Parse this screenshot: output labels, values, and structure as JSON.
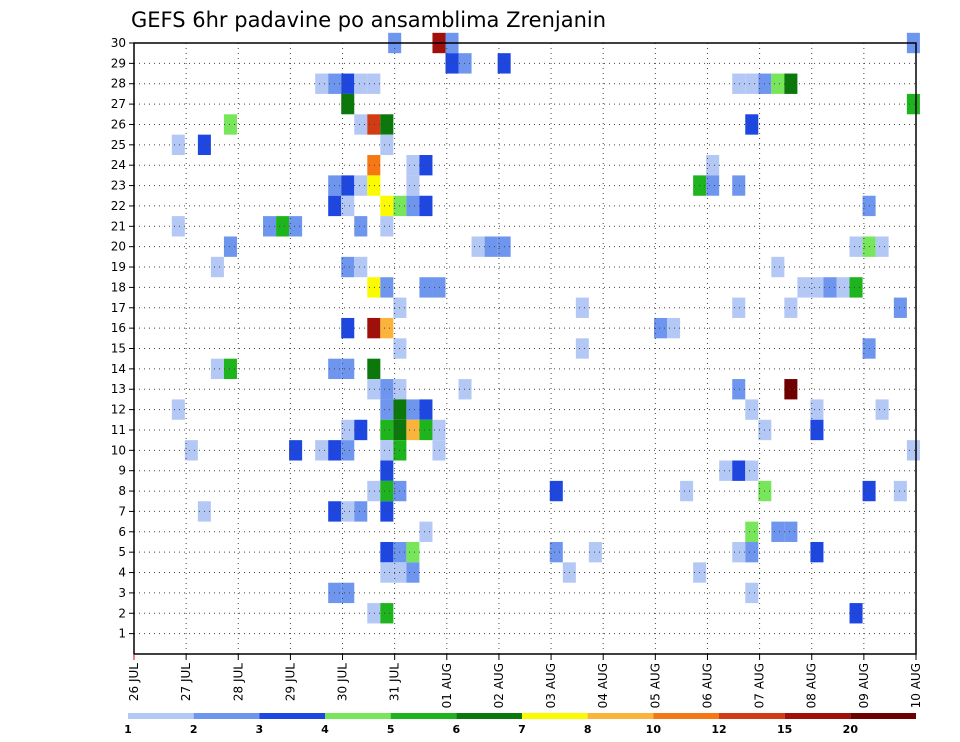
{
  "chart_data": {
    "type": "heatmap",
    "title": "GEFS 6hr padavine po ansamblima Zrenjanin",
    "x_ticks": [
      "26 JUL",
      "27 JUL",
      "28 JUL",
      "29 JUL",
      "30 JUL",
      "31 JUL",
      "01 AUG",
      "02 AUG",
      "03 AUG",
      "04 AUG",
      "05 AUG",
      "06 AUG",
      "07 AUG",
      "08 AUG",
      "09 AUG",
      "10 AUG"
    ],
    "y_ticks": [
      1,
      2,
      3,
      4,
      5,
      6,
      7,
      8,
      9,
      10,
      11,
      12,
      13,
      14,
      15,
      16,
      17,
      18,
      19,
      20,
      21,
      22,
      23,
      24,
      25,
      26,
      27,
      28,
      29,
      30
    ],
    "xlim": [
      0,
      15
    ],
    "ylim": [
      0,
      30
    ],
    "grid": true,
    "colorbar": {
      "labels": [
        "1",
        "2",
        "3",
        "4",
        "5",
        "6",
        "7",
        "8",
        "10",
        "12",
        "15",
        "20"
      ],
      "colors": [
        "#b4c8f5",
        "#6e96ee",
        "#1e46e1",
        "#78e65a",
        "#1eb41e",
        "#0a780a",
        "#fafa00",
        "#fab43c",
        "#f57814",
        "#d23c14",
        "#a00f0a",
        "#6e0000"
      ]
    },
    "cells": [
      [
        5,
        30,
        1
      ],
      [
        5.85,
        30,
        10
      ],
      [
        6.1,
        30,
        1
      ],
      [
        14.95,
        30,
        1
      ],
      [
        6.1,
        29,
        2
      ],
      [
        6.35,
        29,
        1
      ],
      [
        7.1,
        29,
        2
      ],
      [
        3.6,
        28,
        0
      ],
      [
        3.85,
        28,
        1
      ],
      [
        4.1,
        28,
        2
      ],
      [
        4.35,
        28,
        0
      ],
      [
        4.6,
        28,
        0
      ],
      [
        11.6,
        28,
        0
      ],
      [
        11.85,
        28,
        0
      ],
      [
        12.1,
        28,
        1
      ],
      [
        12.35,
        28,
        3
      ],
      [
        12.6,
        28,
        5
      ],
      [
        4.1,
        27,
        5
      ],
      [
        14.95,
        27,
        4
      ],
      [
        1.85,
        26,
        3
      ],
      [
        4.35,
        26,
        0
      ],
      [
        4.6,
        26,
        9
      ],
      [
        4.85,
        26,
        5
      ],
      [
        11.85,
        26,
        2
      ],
      [
        0.85,
        25,
        0
      ],
      [
        1.35,
        25,
        2
      ],
      [
        4.85,
        25,
        0
      ],
      [
        4.6,
        24,
        8
      ],
      [
        5.35,
        24,
        0
      ],
      [
        5.6,
        24,
        2
      ],
      [
        11.1,
        24,
        0
      ],
      [
        3.85,
        23,
        1
      ],
      [
        4.1,
        23,
        2
      ],
      [
        4.35,
        23,
        0
      ],
      [
        4.6,
        23,
        6
      ],
      [
        5.35,
        23,
        0
      ],
      [
        10.85,
        23,
        4
      ],
      [
        11.1,
        23,
        1
      ],
      [
        11.6,
        23,
        1
      ],
      [
        3.85,
        22,
        2
      ],
      [
        4.1,
        22,
        0
      ],
      [
        4.85,
        22,
        6
      ],
      [
        5.1,
        22,
        3
      ],
      [
        5.35,
        22,
        1
      ],
      [
        5.6,
        22,
        2
      ],
      [
        14.1,
        22,
        1
      ],
      [
        0.85,
        21,
        0
      ],
      [
        2.6,
        21,
        1
      ],
      [
        2.85,
        21,
        4
      ],
      [
        3.1,
        21,
        1
      ],
      [
        4.35,
        21,
        1
      ],
      [
        4.85,
        21,
        0
      ],
      [
        1.85,
        20,
        1
      ],
      [
        6.6,
        20,
        0
      ],
      [
        6.85,
        20,
        1
      ],
      [
        7.1,
        20,
        1
      ],
      [
        13.85,
        20,
        0
      ],
      [
        14.1,
        20,
        3
      ],
      [
        14.35,
        20,
        0
      ],
      [
        1.6,
        19,
        0
      ],
      [
        4.1,
        19,
        1
      ],
      [
        4.35,
        19,
        0
      ],
      [
        12.35,
        19,
        0
      ],
      [
        4.6,
        18,
        6
      ],
      [
        4.85,
        18,
        1
      ],
      [
        5.6,
        18,
        1
      ],
      [
        5.85,
        18,
        1
      ],
      [
        12.85,
        18,
        0
      ],
      [
        13.1,
        18,
        0
      ],
      [
        13.35,
        18,
        1
      ],
      [
        13.6,
        18,
        0
      ],
      [
        13.85,
        18,
        4
      ],
      [
        5.1,
        17,
        0
      ],
      [
        8.6,
        17,
        0
      ],
      [
        11.6,
        17,
        0
      ],
      [
        12.6,
        17,
        0
      ],
      [
        14.7,
        17,
        1
      ],
      [
        4.1,
        16,
        2
      ],
      [
        4.6,
        16,
        10
      ],
      [
        4.85,
        16,
        7
      ],
      [
        10.1,
        16,
        1
      ],
      [
        10.35,
        16,
        0
      ],
      [
        5.1,
        15,
        0
      ],
      [
        8.6,
        15,
        0
      ],
      [
        14.1,
        15,
        1
      ],
      [
        1.6,
        14,
        0
      ],
      [
        1.85,
        14,
        4
      ],
      [
        3.85,
        14,
        1
      ],
      [
        4.1,
        14,
        1
      ],
      [
        4.6,
        14,
        5
      ],
      [
        4.6,
        13,
        0
      ],
      [
        4.85,
        13,
        1
      ],
      [
        5.1,
        13,
        0
      ],
      [
        6.35,
        13,
        0
      ],
      [
        11.6,
        13,
        1
      ],
      [
        12.6,
        13,
        11
      ],
      [
        0.85,
        12,
        0
      ],
      [
        4.85,
        12,
        1
      ],
      [
        5.1,
        12,
        5
      ],
      [
        5.35,
        12,
        1
      ],
      [
        5.6,
        12,
        2
      ],
      [
        11.85,
        12,
        0
      ],
      [
        13.1,
        12,
        0
      ],
      [
        14.35,
        12,
        0
      ],
      [
        4.1,
        11,
        0
      ],
      [
        4.35,
        11,
        2
      ],
      [
        4.85,
        11,
        4
      ],
      [
        5.1,
        11,
        5
      ],
      [
        5.35,
        11,
        7
      ],
      [
        5.6,
        11,
        4
      ],
      [
        5.85,
        11,
        0
      ],
      [
        12.1,
        11,
        0
      ],
      [
        13.1,
        11,
        2
      ],
      [
        1.1,
        10,
        0
      ],
      [
        3.1,
        10,
        2
      ],
      [
        3.6,
        10,
        0
      ],
      [
        3.85,
        10,
        2
      ],
      [
        4.1,
        10,
        1
      ],
      [
        4.85,
        10,
        0
      ],
      [
        5.1,
        10,
        4
      ],
      [
        5.85,
        10,
        0
      ],
      [
        14.95,
        10,
        0
      ],
      [
        4.85,
        9,
        2
      ],
      [
        11.35,
        9,
        0
      ],
      [
        11.6,
        9,
        2
      ],
      [
        11.85,
        9,
        0
      ],
      [
        4.6,
        8,
        0
      ],
      [
        4.85,
        8,
        4
      ],
      [
        5.1,
        8,
        1
      ],
      [
        8.1,
        8,
        2
      ],
      [
        10.6,
        8,
        0
      ],
      [
        12.1,
        8,
        3
      ],
      [
        14.1,
        8,
        2
      ],
      [
        14.7,
        8,
        0
      ],
      [
        1.35,
        7,
        0
      ],
      [
        3.85,
        7,
        2
      ],
      [
        4.1,
        7,
        0
      ],
      [
        4.35,
        7,
        1
      ],
      [
        4.85,
        7,
        2
      ],
      [
        5.6,
        6,
        0
      ],
      [
        11.85,
        6,
        3
      ],
      [
        12.35,
        6,
        1
      ],
      [
        12.6,
        6,
        1
      ],
      [
        4.85,
        5,
        2
      ],
      [
        5.1,
        5,
        1
      ],
      [
        5.35,
        5,
        3
      ],
      [
        8.1,
        5,
        1
      ],
      [
        8.85,
        5,
        0
      ],
      [
        11.6,
        5,
        0
      ],
      [
        11.85,
        5,
        1
      ],
      [
        13.1,
        5,
        2
      ],
      [
        4.85,
        4,
        0
      ],
      [
        5.1,
        4,
        0
      ],
      [
        5.35,
        4,
        1
      ],
      [
        8.35,
        4,
        0
      ],
      [
        10.85,
        4,
        0
      ],
      [
        3.85,
        3,
        1
      ],
      [
        4.1,
        3,
        1
      ],
      [
        11.85,
        3,
        0
      ],
      [
        4.6,
        2,
        0
      ],
      [
        4.85,
        2,
        4
      ],
      [
        13.85,
        2,
        2
      ]
    ]
  }
}
